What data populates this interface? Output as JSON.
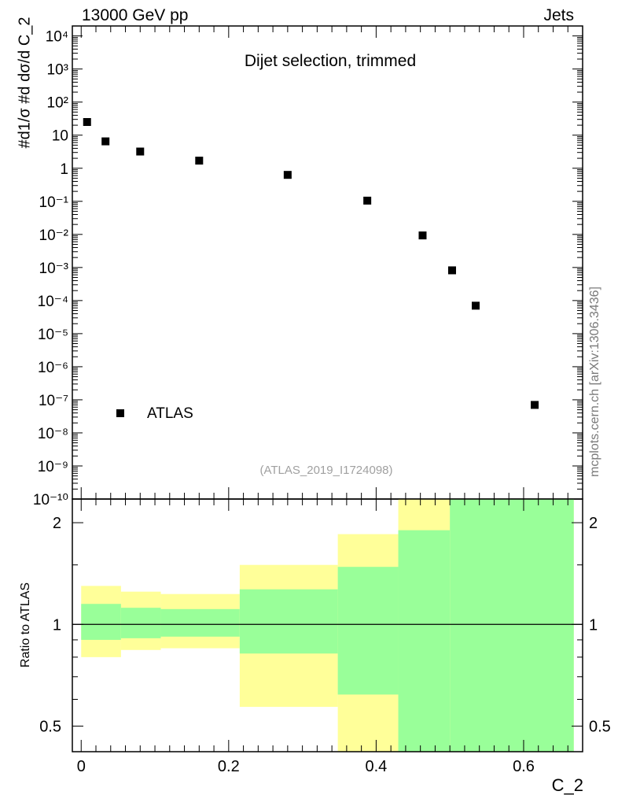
{
  "header": {
    "left": "13000 GeV pp",
    "right": "Jets"
  },
  "plot_title": "Dijet selection, trimmed",
  "analysis_tag": "(ATLAS_2019_I1724098)",
  "side_credit": "mcplots.cern.ch [arXiv:1306.3436]",
  "colors": {
    "band_inner": "#99ff99",
    "band_outer": "#ffff99",
    "marker": "#000000",
    "tag": "#a0a0a0"
  },
  "chart_data": [
    {
      "type": "scatter",
      "ylabel": "#d1/σ #d dσ/d C_2",
      "yscale": "log",
      "ylim": [
        1e-10,
        20000
      ],
      "xlim": [
        -0.012,
        0.68
      ],
      "y_tick_labels": [
        "10^-10",
        "10^-9",
        "10^-8",
        "10^-7",
        "10^-6",
        "10^-5",
        "10^-4",
        "10^-3",
        "10^-2",
        "10^-1",
        "1",
        "10",
        "10^2",
        "10^3",
        "10^4"
      ],
      "legend": {
        "placement": "bottom-left",
        "entries": [
          "ATLAS"
        ]
      },
      "series": [
        {
          "name": "ATLAS",
          "x": [
            0.008,
            0.033,
            0.08,
            0.16,
            0.28,
            0.388,
            0.463,
            0.503,
            0.535,
            0.615
          ],
          "y": [
            25,
            6.5,
            3.2,
            1.7,
            0.63,
            0.105,
            0.0093,
            0.00082,
            7e-05,
            7e-08
          ]
        }
      ]
    },
    {
      "type": "area",
      "xlabel": "C_2",
      "ylabel": "Ratio to ATLAS",
      "yscale": "log",
      "ylim": [
        0.42,
        2.35
      ],
      "xlim": [
        -0.012,
        0.68
      ],
      "x_ticks": [
        0,
        0.2,
        0.4,
        0.6
      ],
      "x_tick_labels": [
        "0",
        "0.2",
        "0.4",
        "0.6"
      ],
      "y_ticks": [
        0.5,
        1,
        2
      ],
      "y_tick_labels": [
        "0.5",
        "1",
        "2"
      ],
      "bins": [
        {
          "lo": 0.0,
          "hi": 0.054,
          "inner": [
            0.9,
            1.15
          ],
          "outer": [
            0.8,
            1.3
          ]
        },
        {
          "lo": 0.054,
          "hi": 0.108,
          "inner": [
            0.91,
            1.12
          ],
          "outer": [
            0.84,
            1.25
          ]
        },
        {
          "lo": 0.108,
          "hi": 0.215,
          "inner": [
            0.92,
            1.11
          ],
          "outer": [
            0.85,
            1.23
          ]
        },
        {
          "lo": 0.215,
          "hi": 0.348,
          "inner": [
            0.82,
            1.27
          ],
          "outer": [
            0.57,
            1.5
          ]
        },
        {
          "lo": 0.348,
          "hi": 0.43,
          "inner": [
            0.62,
            1.48
          ],
          "outer": [
            0.35,
            1.85
          ]
        },
        {
          "lo": 0.43,
          "hi": 0.5,
          "inner": [
            0.35,
            1.9
          ],
          "outer": [
            0.35,
            2.4
          ]
        },
        {
          "lo": 0.5,
          "hi": 0.668,
          "inner": [
            0.35,
            2.4
          ],
          "outer": [
            0.35,
            2.4
          ]
        }
      ],
      "reference_line": 1
    }
  ]
}
